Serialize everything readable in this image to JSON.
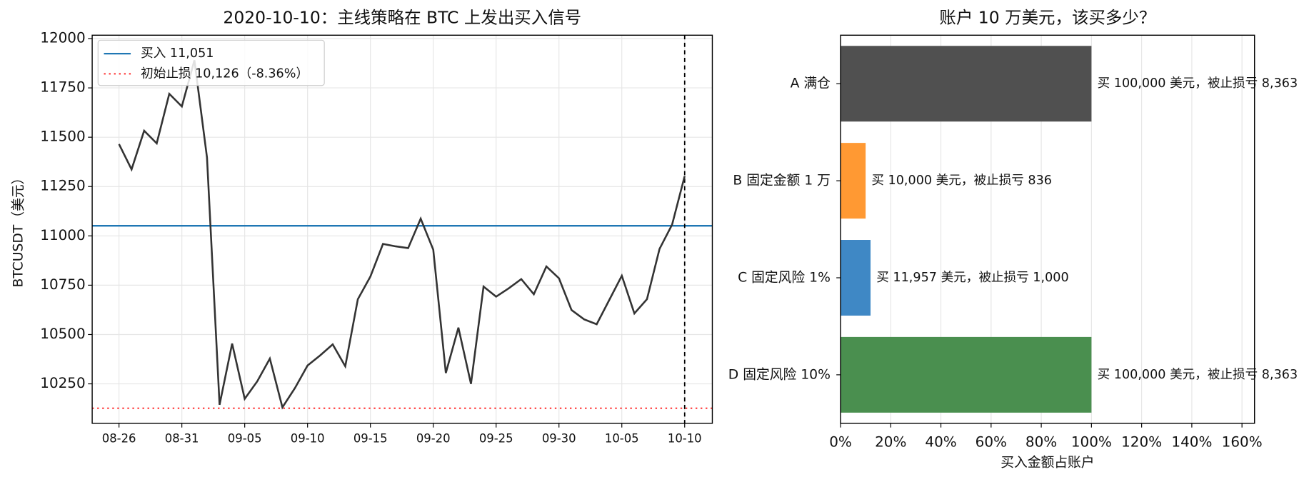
{
  "chart_data": [
    {
      "type": "line",
      "title": "2020-10-10：主线策略在 BTC 上发出买入信号",
      "y_label": "BTCUSDT（美元）",
      "categories": [
        "08-26",
        null,
        null,
        null,
        null,
        "08-31",
        null,
        null,
        null,
        null,
        "09-05",
        null,
        null,
        null,
        null,
        "09-10",
        null,
        null,
        null,
        null,
        "09-15",
        null,
        null,
        null,
        null,
        "09-20",
        null,
        null,
        null,
        null,
        "09-25",
        null,
        null,
        null,
        null,
        "09-30",
        null,
        null,
        null,
        null,
        "10-05",
        null,
        null,
        null,
        null,
        "10-10"
      ],
      "series": [
        {
          "color": "#333333",
          "values": [
            11465,
            11337,
            11533,
            11469,
            11720,
            11656,
            11890,
            11397,
            10144,
            10454,
            10174,
            10263,
            10378,
            10131,
            10229,
            10343,
            10394,
            10450,
            10339,
            10679,
            10794,
            10959,
            10947,
            10938,
            11087,
            10930,
            10305,
            10535,
            10250,
            10743,
            10692,
            10734,
            10781,
            10704,
            10845,
            10785,
            10624,
            10577,
            10552,
            10675,
            10798,
            10607,
            10679,
            10934,
            11057,
            11303
          ]
        }
      ],
      "hlines": [
        {
          "name": "买入 11,051",
          "value": 11051,
          "color": "#1f77b4",
          "style": "solid"
        },
        {
          "name": "初始止损 10,126（-8.36%）",
          "value": 10126,
          "color": "#ff4d4d",
          "style": "dotted"
        }
      ],
      "ylim": [
        10050,
        12017
      ],
      "yticks": [
        10250,
        10500,
        10750,
        11000,
        11250,
        11500,
        11750,
        12000
      ],
      "grid": true,
      "legend": "upper-left"
    },
    {
      "type": "barh",
      "title": "账户 10 万美元，该买多少？",
      "x_label": "买入金额占账户",
      "categories": [
        "A 满仓",
        "B 固定金额 1 万",
        "C 固定风险 1%",
        "D 固定风险 10%"
      ],
      "values": [
        100,
        10,
        11.957,
        100
      ],
      "value_labels": [
        "买 100,000 美元，被止损亏 8,363",
        "买 10,000 美元，被止损亏 836",
        "买 11,957 美元，被止损亏 1,000",
        "买 100,000 美元，被止损亏 8,363"
      ],
      "colors": [
        "#505050",
        "#ff9933",
        "#3f88c5",
        "#4a8f4f"
      ],
      "xlim": [
        0,
        165
      ],
      "xticks": [
        {
          "value": 0,
          "label": "0%"
        },
        {
          "value": 20,
          "label": "20%"
        },
        {
          "value": 40,
          "label": "40%"
        },
        {
          "value": 60,
          "label": "60%"
        },
        {
          "value": 80,
          "label": "80%"
        },
        {
          "value": 100,
          "label": "100%"
        },
        {
          "value": 120,
          "label": "120%"
        },
        {
          "value": 140,
          "label": "140%"
        },
        {
          "value": 160,
          "label": "160%"
        }
      ],
      "grid": true
    }
  ]
}
